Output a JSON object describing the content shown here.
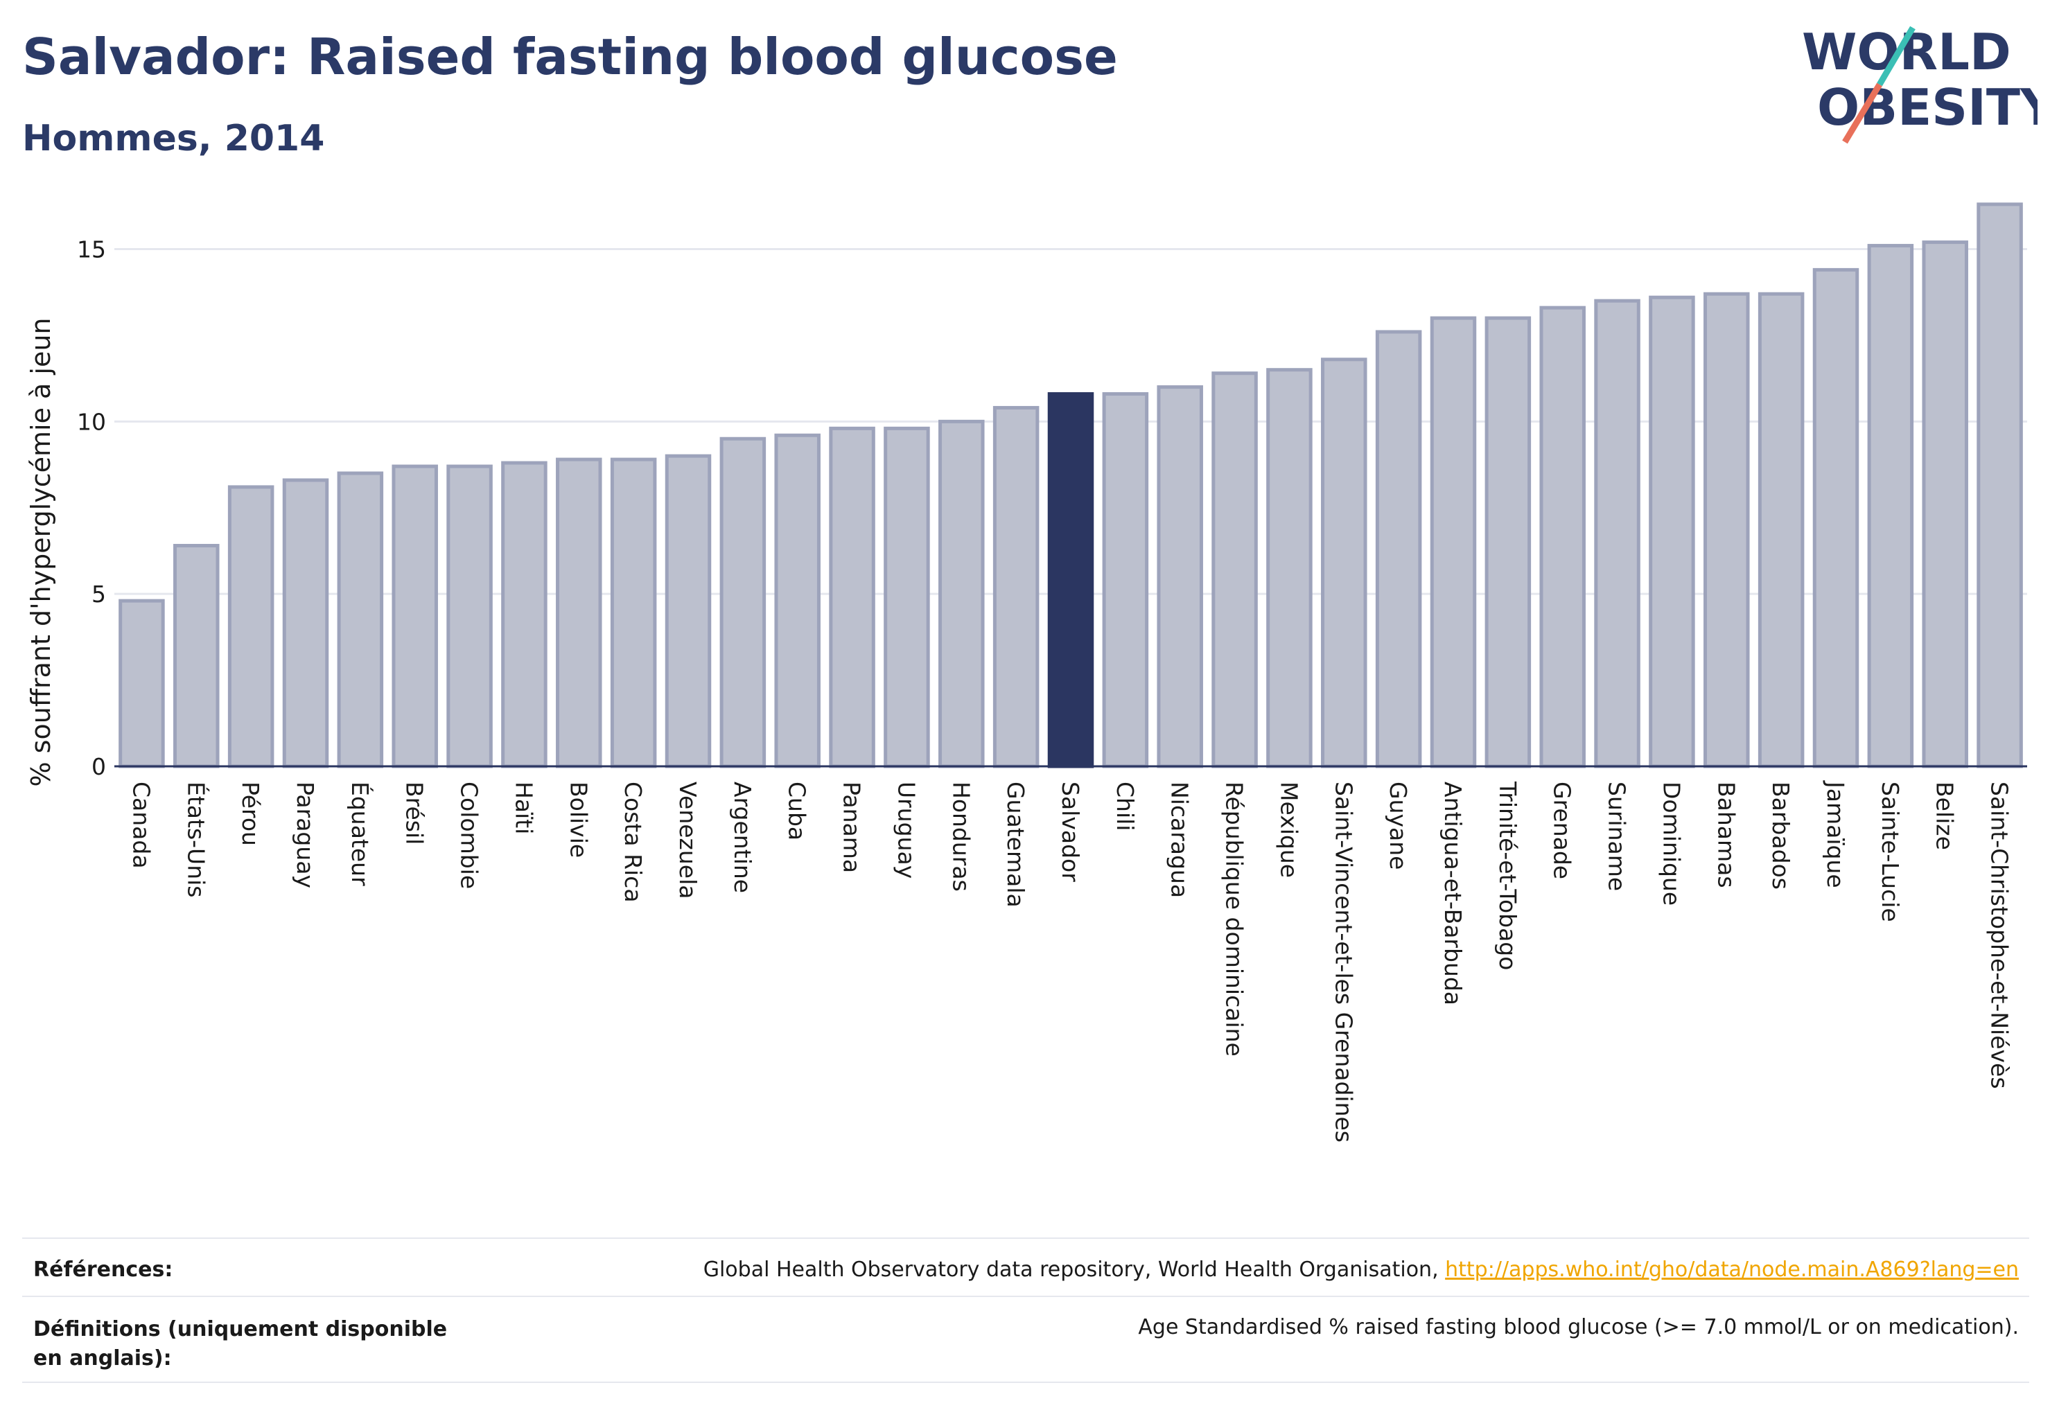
{
  "header": {
    "title": "Salvador: Raised fasting blood glucose",
    "subtitle": "Hommes, 2014"
  },
  "logo": {
    "line1": "WORLD",
    "line2": "OBESITY",
    "colors": {
      "text": "#2b3a67",
      "slash_top": "#3bbfb5",
      "slash_bottom": "#e8705a"
    }
  },
  "chart_data": {
    "type": "bar",
    "ylabel": "% souffrant d'hyperglycémie à jeun",
    "xlabel": "",
    "ylim": [
      0,
      17
    ],
    "yticks": [
      0,
      5,
      10,
      15
    ],
    "grid": true,
    "highlight": "Salvador",
    "colors": {
      "bar": "#bcc0ce",
      "bar_border": "#9da3bb",
      "highlight": "#2b3661",
      "grid": "#e5e7ee",
      "axis": "#2b3661"
    },
    "categories": [
      "Canada",
      "États-Unis",
      "Pérou",
      "Paraguay",
      "Équateur",
      "Brésil",
      "Colombie",
      "Haïti",
      "Bolivie",
      "Costa Rica",
      "Venezuela",
      "Argentine",
      "Cuba",
      "Panama",
      "Uruguay",
      "Honduras",
      "Guatemala",
      "Salvador",
      "Chili",
      "Nicaragua",
      "République dominicaine",
      "Mexique",
      "Saint-Vincent-et-les Grenadines",
      "Guyane",
      "Antigua-et-Barbuda",
      "Trinité-et-Tobago",
      "Grenade",
      "Suriname",
      "Dominique",
      "Bahamas",
      "Barbados",
      "Jamaïque",
      "Sainte-Lucie",
      "Belize",
      "Saint-Christophe-et-Niévès"
    ],
    "values": [
      4.8,
      6.4,
      8.1,
      8.3,
      8.5,
      8.7,
      8.7,
      8.8,
      8.9,
      8.9,
      9.0,
      9.5,
      9.6,
      9.8,
      9.8,
      10.0,
      10.4,
      10.8,
      10.8,
      11.0,
      11.4,
      11.5,
      11.8,
      12.6,
      13.0,
      13.0,
      13.3,
      13.5,
      13.6,
      13.7,
      13.7,
      14.4,
      15.1,
      15.2,
      16.3
    ]
  },
  "footer": {
    "references_label": "Références:",
    "references_text": "Global Health Observatory data repository, World Health Organisation, ",
    "references_link": "http://apps.who.int/gho/data/node.main.A869?lang=en",
    "definitions_label": "Définitions (uniquement disponible en anglais):",
    "definitions_text": "Age Standardised % raised fasting blood glucose (>= 7.0 mmol/L or on medication)."
  }
}
